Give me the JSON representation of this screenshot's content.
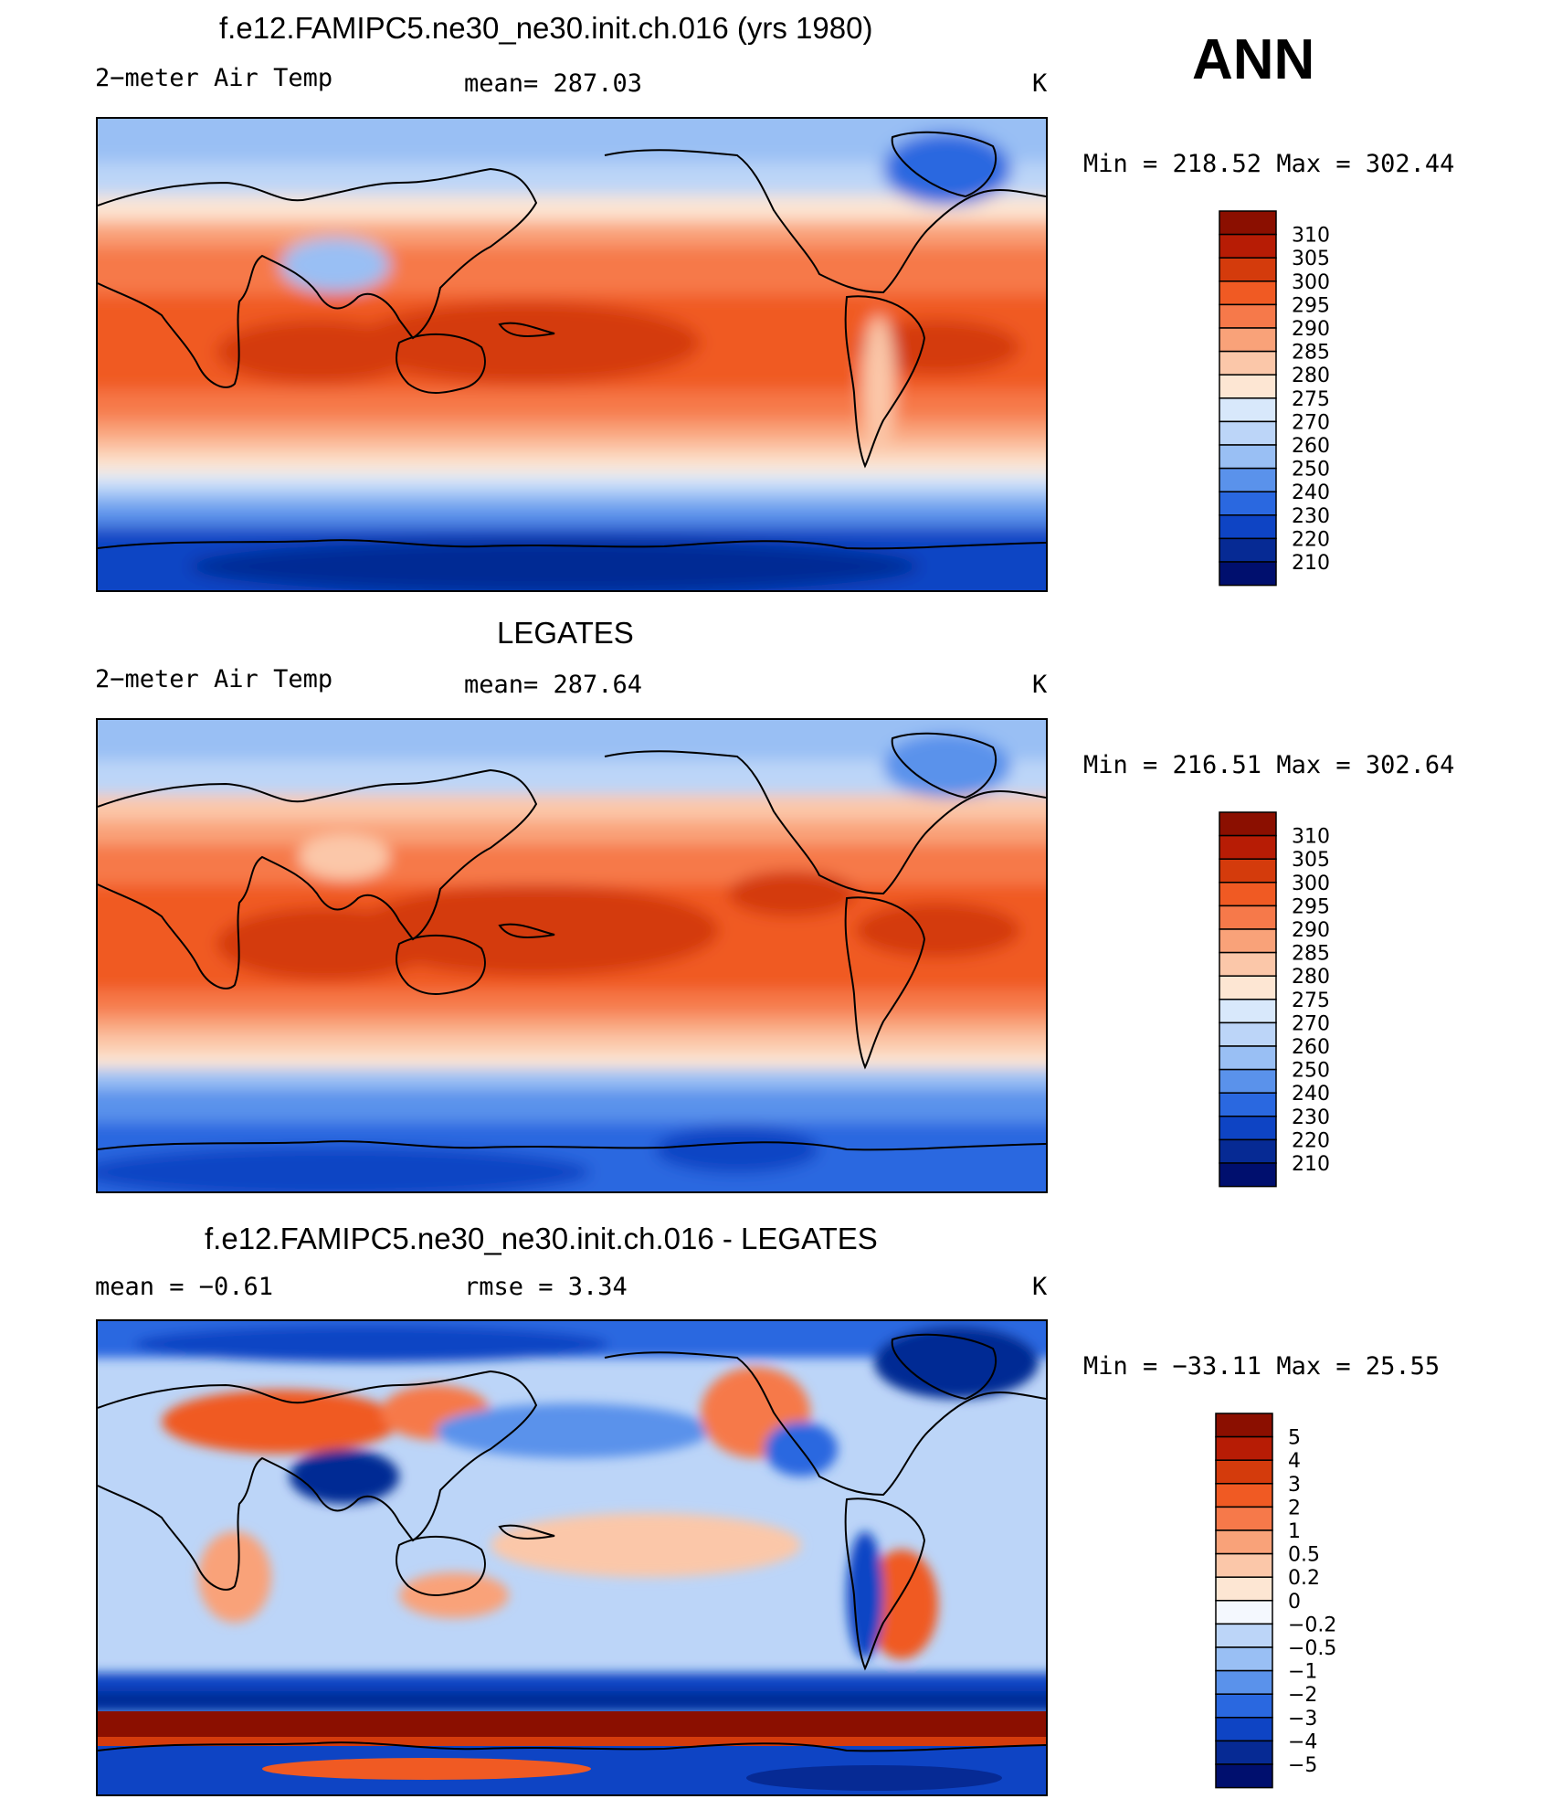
{
  "season": "ANN",
  "units": "K",
  "panels": [
    {
      "title": "f.e12.FAMIPC5.ne30_ne30.init.ch.016 (yrs 1980)",
      "variable": "2−meter Air Temp",
      "mean_text": "mean=  287.03",
      "units": "K",
      "minmax": "Min  =  218.52  Max  =  302.44"
    },
    {
      "title": "LEGATES",
      "variable": "2−meter Air Temp",
      "mean_text": "mean=  287.64",
      "units": "K",
      "minmax": "Min  =  216.51  Max  =  302.64"
    },
    {
      "title": "f.e12.FAMIPC5.ne30_ne30.init.ch.016 - LEGATES",
      "mean_text": "mean  =    −0.61",
      "rmse_text": "rmse  =     3.34",
      "units": "K",
      "minmax": "Min  =  −33.11  Max  =    25.55"
    }
  ],
  "chart_data": [
    {
      "type": "heatmap",
      "title": "f.e12.FAMIPC5.ne30_ne30.init.ch.016 (yrs 1980)",
      "variable": "2-meter Air Temp",
      "units": "K",
      "mean": 287.03,
      "min": 218.52,
      "max": 302.44,
      "colorbar_levels": [
        310,
        305,
        300,
        295,
        290,
        285,
        280,
        275,
        270,
        260,
        250,
        240,
        230,
        220,
        210
      ],
      "colorbar_labels": [
        "310",
        "305",
        "300",
        "295",
        "290",
        "285",
        "280",
        "275",
        "270",
        "260",
        "250",
        "240",
        "230",
        "220",
        "210"
      ],
      "colors": [
        "#8b0f00",
        "#b71c05",
        "#d43b0c",
        "#f05a23",
        "#f6794a",
        "#f9a279",
        "#fbc7a9",
        "#fde6d3",
        "#d8e8fb",
        "#bcd5f8",
        "#99bff4",
        "#5a92eb",
        "#2a68e0",
        "#0e44c4",
        "#062a94",
        "#000f6e"
      ]
    },
    {
      "type": "heatmap",
      "title": "LEGATES",
      "variable": "2-meter Air Temp",
      "units": "K",
      "mean": 287.64,
      "min": 216.51,
      "max": 302.64,
      "colorbar_levels": [
        310,
        305,
        300,
        295,
        290,
        285,
        280,
        275,
        270,
        260,
        250,
        240,
        230,
        220,
        210
      ],
      "colorbar_labels": [
        "310",
        "305",
        "300",
        "295",
        "290",
        "285",
        "280",
        "275",
        "270",
        "260",
        "250",
        "240",
        "230",
        "220",
        "210"
      ],
      "colors": [
        "#8b0f00",
        "#b71c05",
        "#d43b0c",
        "#f05a23",
        "#f6794a",
        "#f9a279",
        "#fbc7a9",
        "#fde6d3",
        "#d8e8fb",
        "#bcd5f8",
        "#99bff4",
        "#5a92eb",
        "#2a68e0",
        "#0e44c4",
        "#062a94",
        "#000f6e"
      ]
    },
    {
      "type": "heatmap",
      "title": "f.e12.FAMIPC5.ne30_ne30.init.ch.016 - LEGATES",
      "units": "K",
      "mean": -0.61,
      "rmse": 3.34,
      "min": -33.11,
      "max": 25.55,
      "colorbar_levels": [
        5,
        4,
        3,
        2,
        1,
        0.5,
        0.2,
        0,
        -0.2,
        -0.5,
        -1,
        -2,
        -3,
        -4,
        -5
      ],
      "colorbar_labels": [
        "5",
        "4",
        "3",
        "2",
        "1",
        "0.5",
        "0.2",
        "0",
        "−0.2",
        "−0.5",
        "−1",
        "−2",
        "−3",
        "−4",
        "−5"
      ],
      "colors": [
        "#8b0f00",
        "#b71c05",
        "#d43b0c",
        "#f05a23",
        "#f6794a",
        "#f9a279",
        "#fbc7a9",
        "#fde6d3",
        "#f4f8fe",
        "#bcd5f8",
        "#99bff4",
        "#5a92eb",
        "#2a68e0",
        "#0e44c4",
        "#062a94",
        "#000f6e"
      ]
    }
  ]
}
